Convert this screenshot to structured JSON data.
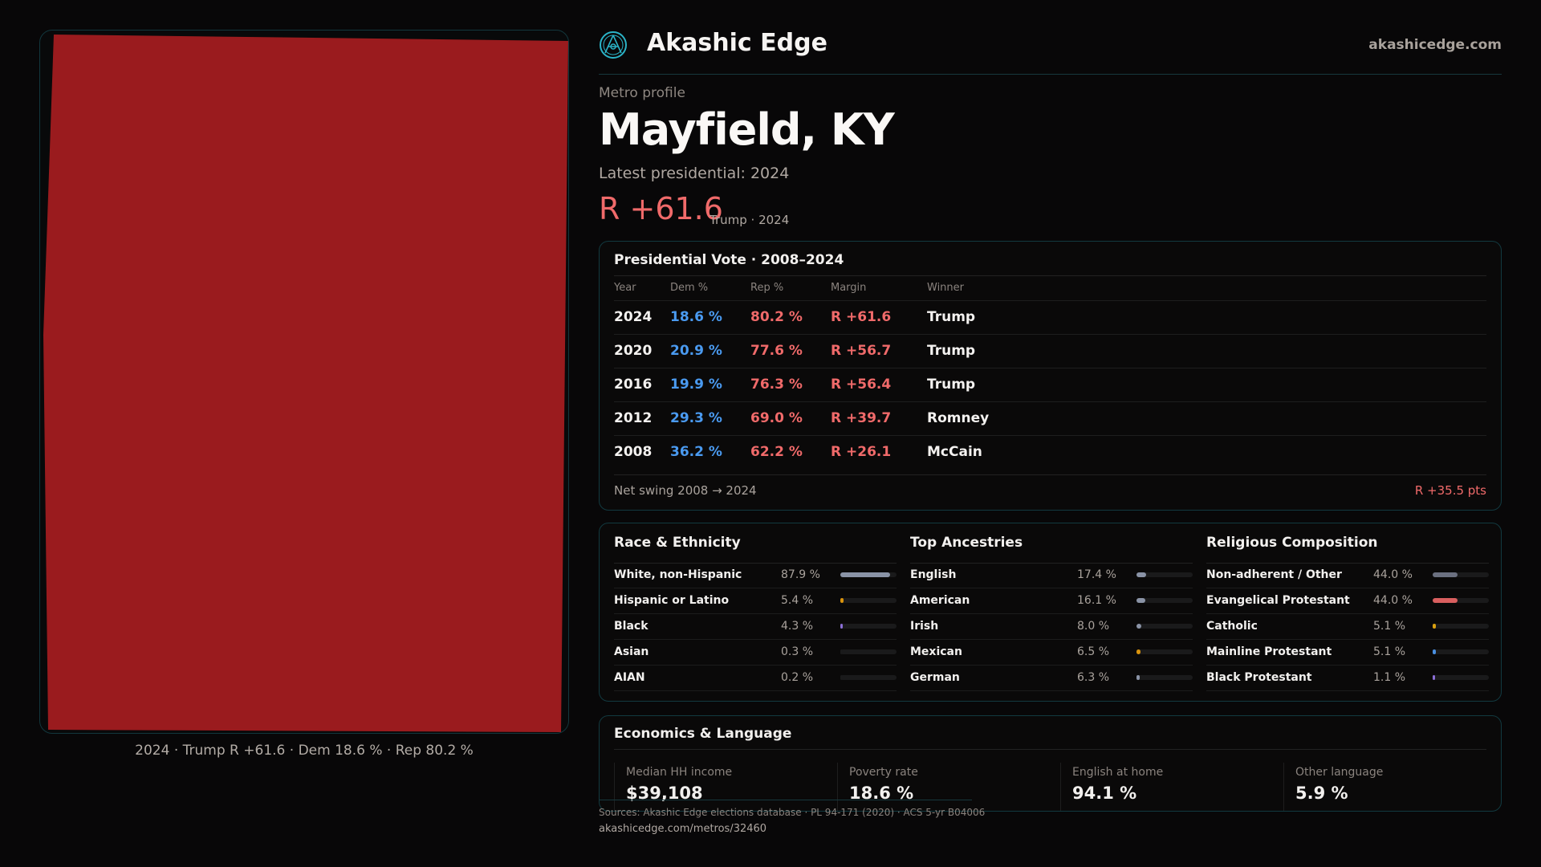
{
  "brand": {
    "name": "Akashic Edge",
    "site": "akashicedge.com",
    "logo_icon": "compass-emblem-icon",
    "accent": "#2bb3c7"
  },
  "profile": {
    "kicker": "Metro profile",
    "title": "Mayfield, KY",
    "latest": "Latest presidential: 2024",
    "margin": "R +61.6",
    "margin_sub": "Trump · 2024"
  },
  "map": {
    "fill": "#9a1b1e",
    "caption": "2024 · Trump R +61.6 · Dem 18.6 % · Rep 80.2 %"
  },
  "vote": {
    "title": "Presidential Vote · 2008–2024",
    "headers": [
      "Year",
      "Dem %",
      "Rep %",
      "Margin",
      "Winner"
    ],
    "rows": [
      {
        "year": "2024",
        "dem": "18.6 %",
        "rep": "80.2 %",
        "margin": "R +61.6",
        "winner": "Trump"
      },
      {
        "year": "2020",
        "dem": "20.9 %",
        "rep": "77.6 %",
        "margin": "R +56.7",
        "winner": "Trump"
      },
      {
        "year": "2016",
        "dem": "19.9 %",
        "rep": "76.3 %",
        "margin": "R +56.4",
        "winner": "Trump"
      },
      {
        "year": "2012",
        "dem": "29.3 %",
        "rep": "69.0 %",
        "margin": "R +39.7",
        "winner": "Romney"
      },
      {
        "year": "2008",
        "dem": "36.2 %",
        "rep": "62.2 %",
        "margin": "R +26.1",
        "winner": "McCain"
      }
    ],
    "swing_label": "Net swing 2008 → 2024",
    "swing_value": "R +35.5 pts",
    "dem_color": "#4a9af0",
    "rep_color": "#f06a6a"
  },
  "demographics": [
    {
      "title": "Race & Ethnicity",
      "items": [
        {
          "label": "White, non-Hispanic",
          "pct": "87.9 %",
          "value": 87.9,
          "color": "#8a93a6"
        },
        {
          "label": "Hispanic or Latino",
          "pct": "5.4 %",
          "value": 5.4,
          "color": "#d9930d"
        },
        {
          "label": "Black",
          "pct": "4.3 %",
          "value": 4.3,
          "color": "#8b6fd6"
        },
        {
          "label": "Asian",
          "pct": "0.3 %",
          "value": 0.3,
          "color": "#1a1a1b"
        },
        {
          "label": "AIAN",
          "pct": "0.2 %",
          "value": 0.2,
          "color": "#1a1a1b"
        }
      ]
    },
    {
      "title": "Top Ancestries",
      "items": [
        {
          "label": "English",
          "pct": "17.4 %",
          "value": 17.4,
          "color": "#8a93a6"
        },
        {
          "label": "American",
          "pct": "16.1 %",
          "value": 16.1,
          "color": "#8a93a6"
        },
        {
          "label": "Irish",
          "pct": "8.0 %",
          "value": 8.0,
          "color": "#8a93a6"
        },
        {
          "label": "Mexican",
          "pct": "6.5 %",
          "value": 6.5,
          "color": "#d9930d"
        },
        {
          "label": "German",
          "pct": "6.3 %",
          "value": 6.3,
          "color": "#8a93a6"
        }
      ]
    },
    {
      "title": "Religious Composition",
      "items": [
        {
          "label": "Non-adherent / Other",
          "pct": "44.0 %",
          "value": 44.0,
          "color": "#6b7080"
        },
        {
          "label": "Evangelical Protestant",
          "pct": "44.0 %",
          "value": 44.0,
          "color": "#d95f5f"
        },
        {
          "label": "Catholic",
          "pct": "5.1 %",
          "value": 5.1,
          "color": "#d9a010"
        },
        {
          "label": "Mainline Protestant",
          "pct": "5.1 %",
          "value": 5.1,
          "color": "#4a8fe0"
        },
        {
          "label": "Black Protestant",
          "pct": "1.1 %",
          "value": 1.1,
          "color": "#8b6fd6"
        }
      ]
    }
  ],
  "economics": {
    "title": "Economics & Language",
    "cells": [
      {
        "label": "Median HH income",
        "value": "$39,108"
      },
      {
        "label": "Poverty rate",
        "value": "18.6 %"
      },
      {
        "label": "English at home",
        "value": "94.1 %"
      },
      {
        "label": "Other language",
        "value": "5.9 %"
      }
    ]
  },
  "footer": {
    "sources": "Sources: Akashic Edge elections database · PL 94-171 (2020) · ACS 5-yr B04006",
    "url": "akashicedge.com/metros/32460"
  }
}
